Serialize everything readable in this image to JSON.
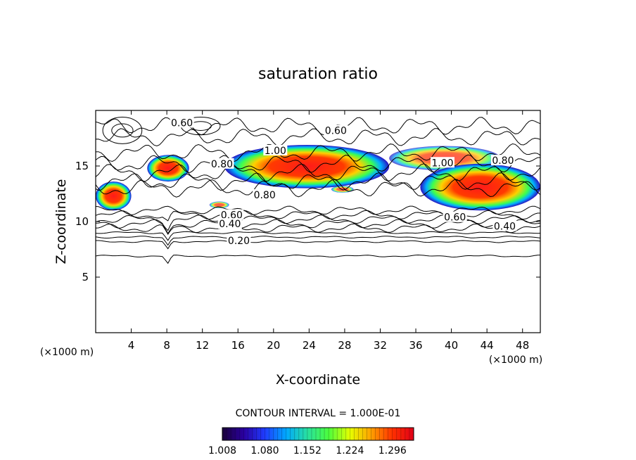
{
  "chart_data": {
    "type": "heatmap",
    "title": "saturation ratio",
    "xlabel": "X-coordinate",
    "ylabel": "Z-coordinate",
    "x_unit_label": "(×1000 m)",
    "x_unit_label_right": "(×1000 m)",
    "xlim": [
      0,
      50
    ],
    "ylim": [
      0,
      20
    ],
    "xticks": [
      4,
      8,
      12,
      16,
      20,
      24,
      28,
      32,
      36,
      40,
      44,
      48
    ],
    "yticks": [
      5,
      10,
      15
    ],
    "contour_interval_text": "CONTOUR INTERVAL = 1.000E-01",
    "contour_interval": 0.1,
    "contour_labels": [
      {
        "text": "0.60",
        "x": 9.7,
        "z": 18.9
      },
      {
        "text": "0.60",
        "x": 27.0,
        "z": 18.2
      },
      {
        "text": "1.00",
        "x": 20.2,
        "z": 16.4
      },
      {
        "text": "0.80",
        "x": 14.2,
        "z": 15.2
      },
      {
        "text": "1.00",
        "x": 39.0,
        "z": 15.3
      },
      {
        "text": "0.80",
        "x": 45.8,
        "z": 15.5
      },
      {
        "text": "0.80",
        "x": 19.0,
        "z": 12.4
      },
      {
        "text": "0.60",
        "x": 15.3,
        "z": 10.6
      },
      {
        "text": "0.40",
        "x": 15.1,
        "z": 9.8
      },
      {
        "text": "0.20",
        "x": 16.1,
        "z": 8.3
      },
      {
        "text": "0.60",
        "x": 40.4,
        "z": 10.4
      },
      {
        "text": "0.40",
        "x": 46.0,
        "z": 9.6
      }
    ],
    "supersaturated_regions": [
      {
        "x": [
          0,
          4
        ],
        "z": [
          11.0,
          13.6
        ],
        "peak": 1.3
      },
      {
        "x": [
          5.8,
          10.5
        ],
        "z": [
          13.6,
          16.0
        ],
        "peak": 1.28
      },
      {
        "x": [
          14.5,
          33.0
        ],
        "z": [
          13.0,
          16.9
        ],
        "peak": 1.33
      },
      {
        "x": [
          33.0,
          45.5
        ],
        "z": [
          14.6,
          16.8
        ],
        "peak": 1.12
      },
      {
        "x": [
          36.5,
          50
        ],
        "z": [
          11.0,
          15.2
        ],
        "peak": 1.32
      },
      {
        "x": [
          26.5,
          29.0
        ],
        "z": [
          12.6,
          13.2
        ],
        "peak": 1.05
      },
      {
        "x": [
          12.8,
          15.0
        ],
        "z": [
          11.2,
          11.8
        ],
        "peak": 1.03
      }
    ],
    "colorbar": {
      "min": 1.008,
      "max": 1.332,
      "tick_values": [
        1.008,
        1.08,
        1.152,
        1.224,
        1.296
      ],
      "tick_labels": [
        "1.008",
        "1.080",
        "1.152",
        "1.224",
        "1.296"
      ],
      "colors": [
        "#1a003a",
        "#2a00a0",
        "#1f3cff",
        "#00a8ff",
        "#28e0a0",
        "#4cff3c",
        "#e6ff00",
        "#ffa000",
        "#ff3000",
        "#e00018"
      ]
    },
    "grid": false
  }
}
